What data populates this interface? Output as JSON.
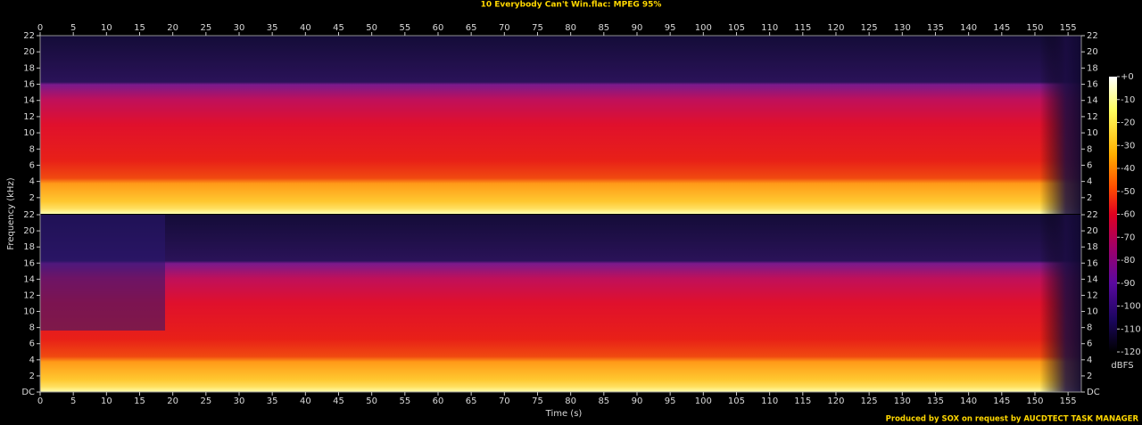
{
  "chart_data": {
    "type": "spectrogram",
    "title": "10 Everybody Can't Win.flac: MPEG 95%",
    "x_label": "Time (s)",
    "y_label": "Frequency (kHz)",
    "xlim": [
      0,
      157
    ],
    "xticks": [
      0,
      5,
      10,
      15,
      20,
      25,
      30,
      35,
      40,
      45,
      50,
      55,
      60,
      65,
      70,
      75,
      80,
      85,
      90,
      95,
      100,
      105,
      110,
      115,
      120,
      125,
      130,
      135,
      140,
      145,
      150,
      155
    ],
    "ylim": [
      0,
      22
    ],
    "panels": [
      {
        "yticks": [
          2,
          4,
          6,
          8,
          10,
          12,
          14,
          16,
          18,
          20,
          22
        ]
      },
      {
        "yticks": [
          {
            "value": 0,
            "label": "DC"
          },
          2,
          4,
          6,
          8,
          10,
          12,
          14,
          16,
          18,
          20,
          22
        ]
      }
    ],
    "colorbar": {
      "label": "dBFS",
      "lim": [
        -120,
        0
      ],
      "ticks": [
        {
          "value": 0,
          "label": "+0"
        },
        -10,
        -20,
        -30,
        -40,
        -50,
        -60,
        -70,
        -80,
        -90,
        -100,
        -110,
        -120
      ]
    },
    "credit": "Produced by SOX on request by AUCDTECT TASK MANAGER"
  }
}
